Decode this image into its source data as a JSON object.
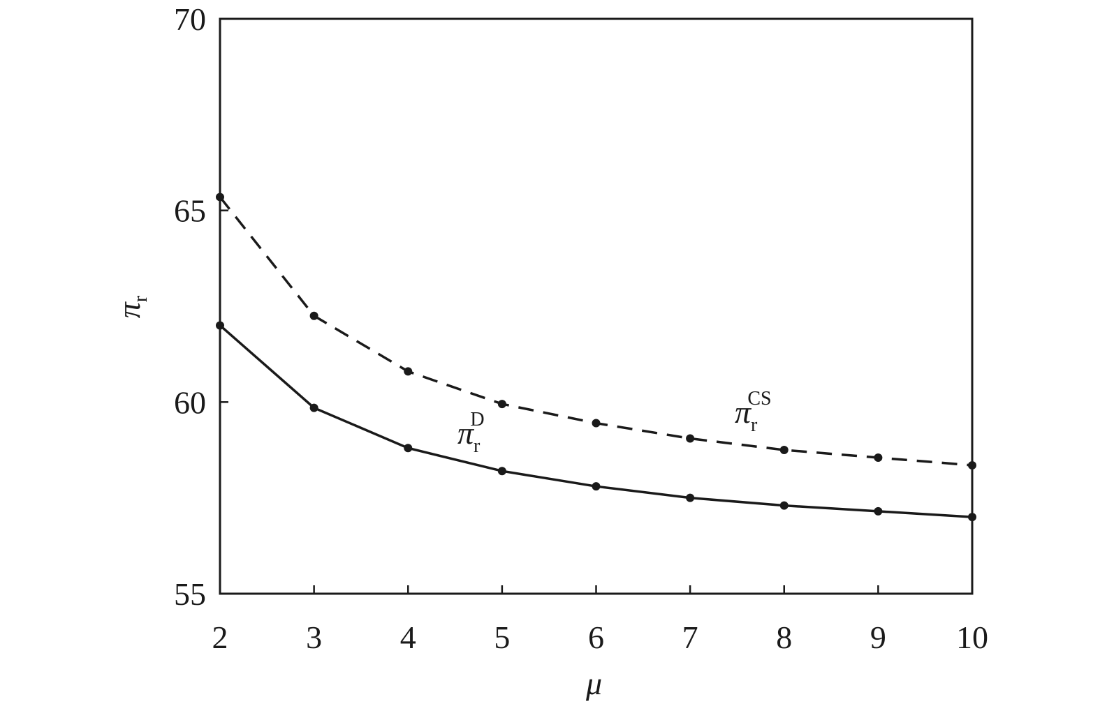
{
  "chart_data": {
    "type": "line",
    "xlabel": "μ",
    "ylabel": {
      "main": "π",
      "sub": "r"
    },
    "xlim": [
      2,
      10
    ],
    "ylim": [
      55,
      70
    ],
    "xticks": [
      2,
      3,
      4,
      5,
      6,
      7,
      8,
      9,
      10
    ],
    "yticks": [
      55,
      60,
      65,
      70
    ],
    "grid": false,
    "x": [
      2,
      3,
      4,
      5,
      6,
      7,
      8,
      9,
      10
    ],
    "series": [
      {
        "key": "cs",
        "label": {
          "main": "π",
          "sub": "r",
          "sup": "CS"
        },
        "style": "dashed",
        "color": "#1a1a1a",
        "values": [
          65.35,
          62.25,
          60.8,
          59.95,
          59.45,
          59.05,
          58.75,
          58.55,
          58.35
        ]
      },
      {
        "key": "d",
        "label": {
          "main": "π",
          "sub": "r",
          "sup": "D"
        },
        "style": "solid",
        "color": "#1a1a1a",
        "values": [
          62.0,
          59.85,
          58.8,
          58.2,
          57.8,
          57.5,
          57.3,
          57.15,
          57.0
        ]
      }
    ]
  }
}
